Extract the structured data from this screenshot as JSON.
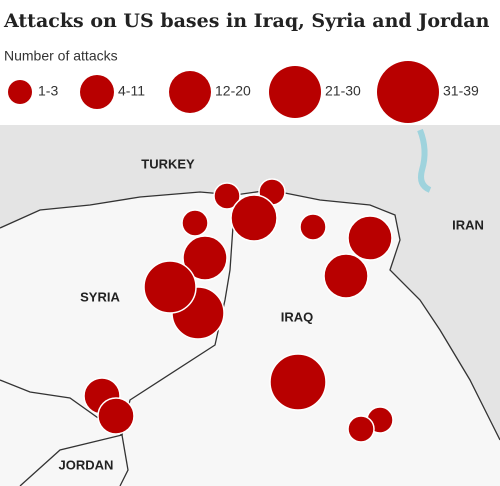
{
  "title": "Attacks on US bases in Iraq, Syria and Jordan",
  "legend": {
    "label": "Number of attacks",
    "items": [
      "1-3",
      "4-11",
      "12-20",
      "21-30",
      "31-39"
    ]
  },
  "map": {
    "labels": [
      "TURKEY",
      "IRAN",
      "SYRIA",
      "IRAQ",
      "JORDAN"
    ]
  }
}
